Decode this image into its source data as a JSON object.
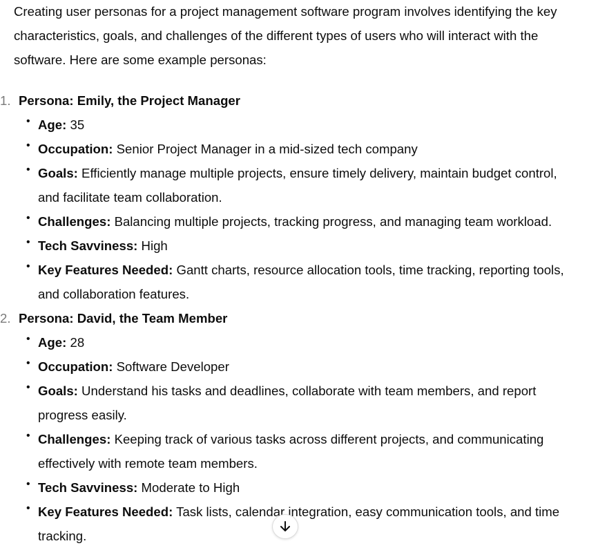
{
  "intro_lines": [
    "Creating user personas for a project management software program involves identifying the key",
    "characteristics, goals, and challenges of the different types of users who will interact with the",
    "software. Here are some example personas:"
  ],
  "personas": [
    {
      "number": "1.",
      "title": "Persona: Emily, the Project Manager",
      "attributes": [
        {
          "label": "Age:",
          "lines": [
            "35"
          ]
        },
        {
          "label": "Occupation:",
          "lines": [
            "Senior Project Manager in a mid-sized tech company"
          ]
        },
        {
          "label": "Goals:",
          "lines": [
            "Efficiently manage multiple projects, ensure timely delivery, maintain budget control,",
            "and facilitate team collaboration."
          ]
        },
        {
          "label": "Challenges:",
          "lines": [
            "Balancing multiple projects, tracking progress, and managing team workload."
          ]
        },
        {
          "label": "Tech Savviness:",
          "lines": [
            "High"
          ]
        },
        {
          "label": "Key Features Needed:",
          "lines": [
            "Gantt charts, resource allocation tools, time tracking, reporting tools,",
            "and collaboration features."
          ]
        }
      ]
    },
    {
      "number": "2.",
      "title": "Persona: David, the Team Member",
      "attributes": [
        {
          "label": "Age:",
          "lines": [
            "28"
          ]
        },
        {
          "label": "Occupation:",
          "lines": [
            "Software Developer"
          ]
        },
        {
          "label": "Goals:",
          "lines": [
            "Understand his tasks and deadlines, collaborate with team members, and report",
            "progress easily."
          ]
        },
        {
          "label": "Challenges:",
          "lines": [
            "Keeping track of various tasks across different projects, and communicating",
            "effectively with remote team members."
          ]
        },
        {
          "label": "Tech Savviness:",
          "lines": [
            "Moderate to High"
          ]
        },
        {
          "label": "Key Features Needed:",
          "lines": [
            "Task lists, calendar integration, easy communication tools, and time",
            "tracking."
          ]
        }
      ]
    }
  ],
  "scroll_button": {
    "icon": "arrow-down-icon"
  }
}
